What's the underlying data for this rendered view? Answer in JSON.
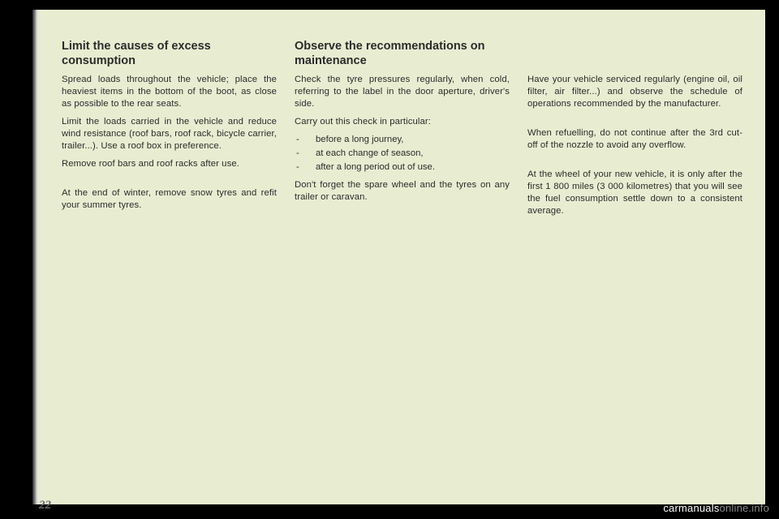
{
  "page": {
    "background_color": "#e8edd1",
    "outer_background": "#000000",
    "text_color": "#2b2b2b",
    "number": "22",
    "number_color": "#6a6a6a"
  },
  "watermark": {
    "prefix": "carmanuals",
    "suffix": "online.info"
  },
  "col1": {
    "heading": "Limit the causes of excess consumption",
    "p1": "Spread loads throughout the vehicle; place the heaviest items in the bottom of the boot, as close as possible to the rear seats.",
    "p2": "Limit the loads carried in the vehicle and reduce wind resistance (roof bars, roof rack, bicycle carrier, trailer...). Use a roof box in preference.",
    "p3": "Remove roof bars and roof racks after use.",
    "p4": "At the end of winter, remove snow tyres and refit your summer tyres."
  },
  "col2": {
    "heading": "Observe the recommendations on maintenance",
    "p1": "Check the tyre pressures regularly, when cold, referring to the label in the door aperture, driver's side.",
    "p2": "Carry out this check in particular:",
    "bullets": [
      "before a long journey,",
      "at each change of season,",
      "after a long period out of use."
    ],
    "p3": "Don't forget the spare wheel and the tyres on any trailer or caravan."
  },
  "col3": {
    "p1": "Have your vehicle serviced regularly (engine oil, oil filter, air filter...) and observe the schedule of operations recommended by the manufacturer.",
    "p2": "When refuelling, do not continue after the 3rd cut-off of the nozzle to avoid any overflow.",
    "p3": "At the wheel of your new vehicle, it is only after the first 1 800 miles (3 000 kilometres) that you will see the fuel consumption settle down to a consistent average."
  }
}
